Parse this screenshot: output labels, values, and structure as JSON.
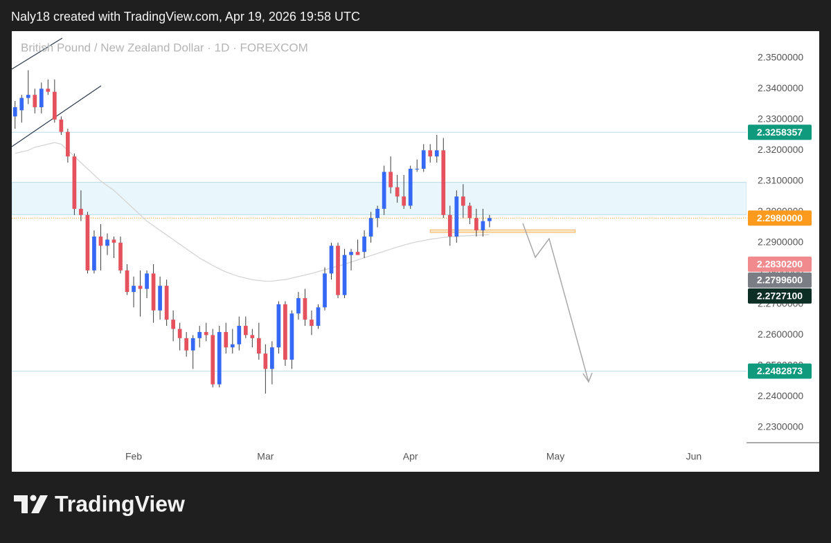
{
  "header": "Naly18 created with TradingView.com, Apr 19, 2026 19:58 UTC",
  "footer": {
    "brand": "TradingView"
  },
  "chart_data": {
    "type": "candlestick",
    "title": "British Pound / New Zealand Dollar · 1D · FOREXCOM",
    "up_color": "#3568f4",
    "down_color": "#e5525d",
    "wick_color": "#3a3a3a",
    "open": [
      2.331,
      2.333,
      2.337,
      2.338,
      2.334,
      2.34,
      2.339,
      2.33,
      2.326,
      2.318,
      2.301,
      2.299,
      2.281,
      2.292,
      2.289,
      2.291,
      2.29,
      2.281,
      2.274,
      2.276,
      2.275,
      2.28,
      2.268,
      2.276,
      2.265,
      2.262,
      2.259,
      2.255,
      2.259,
      2.261,
      2.26,
      2.244,
      2.261,
      2.256,
      2.257,
      2.263,
      2.26,
      2.259,
      2.254,
      2.249,
      2.256,
      2.27,
      2.252,
      2.267,
      2.272,
      2.265,
      2.263,
      2.269,
      2.28,
      2.289,
      2.273,
      2.286,
      2.287,
      2.287,
      2.292,
      2.298,
      2.301,
      2.313,
      2.308,
      2.305,
      2.302,
      2.314,
      2.314,
      2.32,
      2.318,
      2.32,
      2.299,
      2.292,
      2.305,
      2.302,
      2.298,
      2.294,
      2.297
    ],
    "high": [
      2.336,
      2.338,
      2.346,
      2.34,
      2.342,
      2.343,
      2.343,
      2.331,
      2.327,
      2.319,
      2.307,
      2.3,
      2.294,
      2.296,
      2.293,
      2.292,
      2.292,
      2.283,
      2.279,
      2.281,
      2.281,
      2.283,
      2.279,
      2.278,
      2.268,
      2.264,
      2.261,
      2.26,
      2.263,
      2.264,
      2.262,
      2.263,
      2.264,
      2.262,
      2.266,
      2.266,
      2.262,
      2.264,
      2.257,
      2.258,
      2.271,
      2.271,
      2.268,
      2.274,
      2.275,
      2.268,
      2.27,
      2.282,
      2.29,
      2.29,
      2.288,
      2.288,
      2.291,
      2.294,
      2.3,
      2.302,
      2.315,
      2.318,
      2.312,
      2.312,
      2.315,
      2.317,
      2.322,
      2.322,
      2.325,
      2.324,
      2.302,
      2.307,
      2.309,
      2.303,
      2.301,
      2.301,
      2.299
    ],
    "low": [
      2.327,
      2.329,
      2.335,
      2.332,
      2.332,
      2.338,
      2.329,
      2.325,
      2.316,
      2.299,
      2.297,
      2.28,
      2.28,
      2.281,
      2.286,
      2.285,
      2.28,
      2.273,
      2.269,
      2.266,
      2.272,
      2.264,
      2.265,
      2.263,
      2.258,
      2.255,
      2.253,
      2.249,
      2.256,
      2.258,
      2.243,
      2.243,
      2.254,
      2.254,
      2.255,
      2.259,
      2.256,
      2.252,
      2.241,
      2.244,
      2.254,
      2.25,
      2.249,
      2.265,
      2.263,
      2.26,
      2.262,
      2.268,
      2.278,
      2.272,
      2.272,
      2.281,
      2.286,
      2.285,
      2.29,
      2.295,
      2.299,
      2.306,
      2.303,
      2.301,
      2.301,
      2.313,
      2.313,
      2.316,
      2.316,
      2.298,
      2.289,
      2.29,
      2.298,
      2.296,
      2.292,
      2.292,
      2.295
    ],
    "close": [
      2.334,
      2.337,
      2.338,
      2.334,
      2.34,
      2.339,
      2.33,
      2.326,
      2.318,
      2.301,
      2.299,
      2.281,
      2.292,
      2.289,
      2.291,
      2.29,
      2.281,
      2.274,
      2.276,
      2.275,
      2.28,
      2.268,
      2.276,
      2.265,
      2.262,
      2.259,
      2.255,
      2.259,
      2.261,
      2.26,
      2.244,
      2.261,
      2.256,
      2.257,
      2.263,
      2.26,
      2.259,
      2.254,
      2.249,
      2.256,
      2.27,
      2.252,
      2.267,
      2.272,
      2.265,
      2.263,
      2.269,
      2.28,
      2.289,
      2.273,
      2.286,
      2.287,
      2.286,
      2.292,
      2.298,
      2.301,
      2.313,
      2.308,
      2.305,
      2.302,
      2.314,
      2.314,
      2.32,
      2.318,
      2.32,
      2.299,
      2.292,
      2.305,
      2.302,
      2.298,
      2.294,
      2.297,
      2.298
    ],
    "ma": {
      "color": "#d4d4d4",
      "values": [
        2.319,
        2.3195,
        2.32,
        2.321,
        2.3215,
        2.322,
        2.3225,
        2.322,
        2.32,
        2.318,
        2.316,
        2.314,
        2.312,
        2.31,
        2.3085,
        2.307,
        2.305,
        2.303,
        2.301,
        2.299,
        2.297,
        2.2955,
        2.294,
        2.2925,
        2.291,
        2.2895,
        2.288,
        2.2865,
        2.285,
        2.2838,
        2.2826,
        2.2815,
        2.2805,
        2.2797,
        2.279,
        2.2785,
        2.278,
        2.2777,
        2.2775,
        2.2775,
        2.2778,
        2.278,
        2.2785,
        2.279,
        2.2795,
        2.28,
        2.2806,
        2.2812,
        2.2818,
        2.2824,
        2.283,
        2.2837,
        2.2844,
        2.2851,
        2.2858,
        2.2865,
        2.2872,
        2.2879,
        2.2886,
        2.2892,
        2.2898,
        2.2903,
        2.2907,
        2.2911,
        2.2914,
        2.2917,
        2.2919,
        2.2921,
        2.2922,
        2.2923,
        2.2924,
        2.2925,
        2.2926
      ]
    },
    "xlim": [
      -0.5,
      111
    ],
    "xticks": [
      {
        "value": 18,
        "label": "Feb"
      },
      {
        "value": 38,
        "label": "Mar"
      },
      {
        "value": 60,
        "label": "Apr"
      },
      {
        "value": 82,
        "label": "May"
      },
      {
        "value": 103,
        "label": "Jun"
      }
    ],
    "ylim": [
      2.2228,
      2.3587
    ],
    "yticks": [
      {
        "value": 2.35,
        "label": "2.3500000"
      },
      {
        "value": 2.34,
        "label": "2.3400000"
      },
      {
        "value": 2.33,
        "label": "2.3300000"
      },
      {
        "value": 2.32,
        "label": "2.3200000"
      },
      {
        "value": 2.31,
        "label": "2.3100000"
      },
      {
        "value": 2.3,
        "label": "2.3000000"
      },
      {
        "value": 2.29,
        "label": "2.2900000"
      },
      {
        "value": 2.28,
        "label": "2.2800000"
      },
      {
        "value": 2.27,
        "label": "2.2700000"
      },
      {
        "value": 2.26,
        "label": "2.2600000"
      },
      {
        "value": 2.25,
        "label": "2.2500000"
      },
      {
        "value": 2.24,
        "label": "2.2400000"
      },
      {
        "value": 2.23,
        "label": "2.2300000"
      }
    ],
    "zones": [
      {
        "from": 2.2991,
        "to": 2.3096,
        "color": "#e9f6fc",
        "border": "#b9dcea"
      },
      {
        "from": 2.2933,
        "to": 2.2942,
        "color": "#fde6c6",
        "border": "#f5b66a",
        "xlim": [
          63,
          85
        ]
      }
    ],
    "price_labels": [
      {
        "value": 2.3258357,
        "label": "2.3258357",
        "color": "#0f9a7e",
        "line": "solid",
        "line_color": "#b9dcea"
      },
      {
        "value": 2.298,
        "label": "2.2980000",
        "color": "#fb9a1c",
        "line": "dotted",
        "line_color": "#fb9a1c"
      },
      {
        "value": 2.28302,
        "label": "2.2830200",
        "color": "#f08a8d"
      },
      {
        "value": 2.27996,
        "label": "2.2799600",
        "color": "#7b7d85"
      },
      {
        "value": 2.27271,
        "label": "2.2727100",
        "color": "#0c2e24"
      },
      {
        "value": 2.2482873,
        "label": "2.2482873",
        "color": "#0f9a7e",
        "line": "solid",
        "line_color": "#b9dcea"
      }
    ]
  }
}
